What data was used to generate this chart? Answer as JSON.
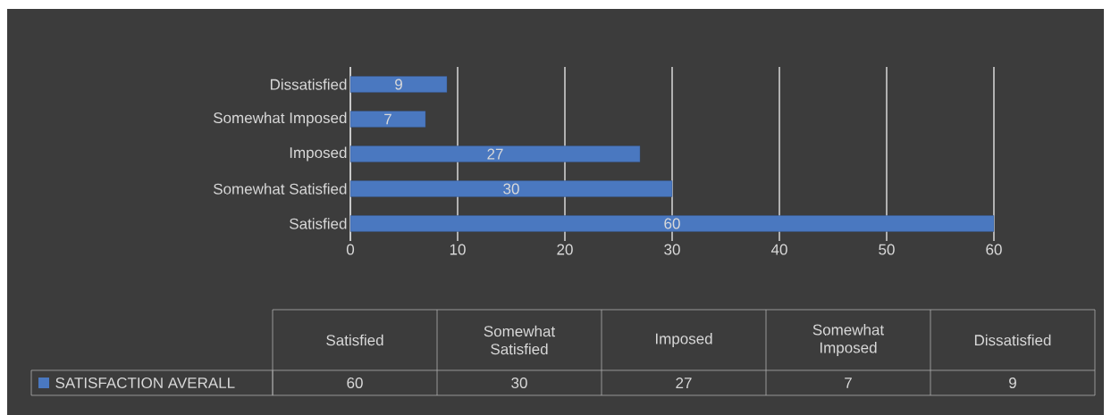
{
  "chart_data": {
    "type": "bar",
    "orientation": "horizontal",
    "categories": [
      "Dissatisfied",
      "Somewhat Imposed",
      "Imposed",
      "Somewhat Satisfied",
      "Satisfied"
    ],
    "series": [
      {
        "name": "SATISFACTION AVERALL",
        "color": "#4a78c0",
        "values": [
          9,
          7,
          27,
          30,
          60
        ],
        "value_labels": [
          "9",
          "7",
          "27",
          "30",
          "60"
        ]
      }
    ],
    "xlim": [
      0,
      60
    ],
    "xticks": [
      0,
      10,
      20,
      30,
      40,
      50,
      60
    ],
    "grid": "x",
    "legend": "bottom"
  }
}
